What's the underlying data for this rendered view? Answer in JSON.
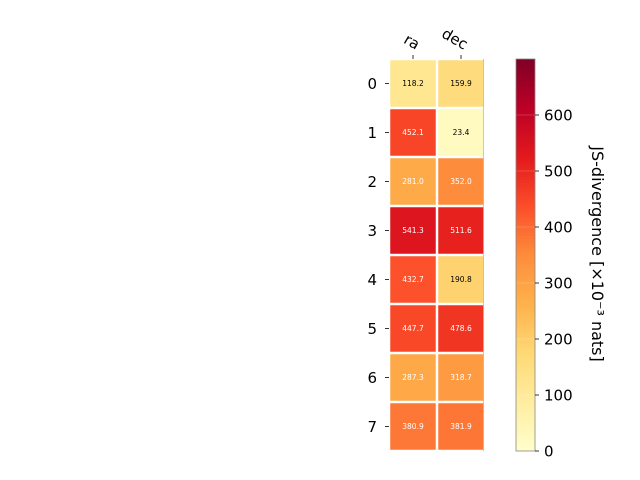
{
  "chart_data": {
    "type": "heatmap",
    "columns": [
      "ra",
      "dec"
    ],
    "rows": [
      "0",
      "1",
      "2",
      "3",
      "4",
      "5",
      "6",
      "7"
    ],
    "values": [
      [
        118.2,
        159.9
      ],
      [
        452.1,
        23.4
      ],
      [
        281.0,
        352.0
      ],
      [
        541.3,
        511.6
      ],
      [
        432.7,
        190.8
      ],
      [
        447.7,
        478.6
      ],
      [
        287.3,
        318.7
      ],
      [
        380.9,
        381.9
      ]
    ],
    "value_labels": [
      [
        "118.2",
        "159.9"
      ],
      [
        "452.1",
        "23.4"
      ],
      [
        "281.0",
        "352.0"
      ],
      [
        "541.3",
        "511.6"
      ],
      [
        "432.7",
        "190.8"
      ],
      [
        "447.7",
        "478.6"
      ],
      [
        "287.3",
        "318.7"
      ],
      [
        "380.9",
        "381.9"
      ]
    ],
    "colorbar": {
      "label": "JS-divergence [×10⁻³ nats]",
      "range": [
        0,
        700
      ],
      "ticks": [
        0,
        100,
        200,
        300,
        400,
        500,
        600
      ],
      "tick_labels": [
        "0",
        "100",
        "200",
        "300",
        "400",
        "500",
        "600"
      ],
      "colormap": "YlOrRd"
    }
  }
}
